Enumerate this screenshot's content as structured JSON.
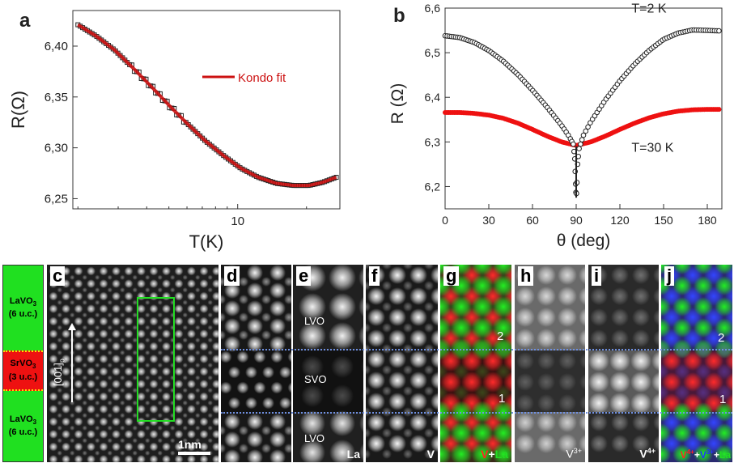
{
  "panel_a": {
    "letter": "a",
    "chart_data": {
      "type": "line",
      "title": "",
      "xlabel": "T(K)",
      "ylabel": "R(Ω)",
      "xscale": "log",
      "xlim": [
        1.9,
        28
      ],
      "ylim": [
        6.24,
        6.435
      ],
      "x_ticks": [
        10
      ],
      "y_ticks": [
        6.25,
        6.3,
        6.35,
        6.4
      ],
      "y_tick_labels": [
        "6,25",
        "6,30",
        "6,35",
        "6,40"
      ],
      "legend": "center-right",
      "series": [
        {
          "name": "",
          "kind": "markers",
          "color": "#222222",
          "x": [
            2.0,
            2.4,
            2.9,
            3.5,
            4.2,
            5.0,
            6.0,
            7.2,
            8.6,
            10.3,
            12.3,
            14.8,
            17.5,
            20.5,
            23.5,
            27.0
          ],
          "y": [
            6.421,
            6.41,
            6.396,
            6.378,
            6.36,
            6.342,
            6.324,
            6.307,
            6.293,
            6.28,
            6.271,
            6.265,
            6.263,
            6.263,
            6.266,
            6.271
          ]
        },
        {
          "name": "Kondo fit",
          "kind": "line",
          "color": "#cc1111",
          "x": [
            2.0,
            2.4,
            2.9,
            3.5,
            4.2,
            5.0,
            6.0,
            7.2,
            8.6,
            10.3,
            12.3,
            14.8,
            17.5,
            20.5,
            23.5,
            27.0
          ],
          "y": [
            6.421,
            6.41,
            6.396,
            6.378,
            6.36,
            6.342,
            6.324,
            6.307,
            6.293,
            6.28,
            6.271,
            6.265,
            6.263,
            6.263,
            6.266,
            6.271
          ]
        }
      ]
    }
  },
  "panel_b": {
    "letter": "b",
    "chart_data": {
      "type": "scatter",
      "title": "",
      "xlabel": "θ (deg)",
      "ylabel": "R (Ω)",
      "xlim": [
        0,
        190
      ],
      "ylim": [
        6.15,
        6.6
      ],
      "x_ticks": [
        0,
        30,
        60,
        90,
        120,
        150,
        180
      ],
      "y_ticks": [
        6.2,
        6.3,
        6.4,
        6.5,
        6.6
      ],
      "y_tick_labels": [
        "6,2",
        "6,3",
        "6,4",
        "6,5",
        "6,6"
      ],
      "annotations": [
        "T=2 K",
        "T=30 K"
      ],
      "series": [
        {
          "name": "T=2 K",
          "kind": "open-circles",
          "color": "#222222",
          "x": [
            0,
            10,
            20,
            30,
            40,
            50,
            60,
            70,
            80,
            85,
            88,
            89,
            90,
            91,
            92,
            95,
            100,
            110,
            120,
            130,
            140,
            150,
            160,
            170,
            180,
            188
          ],
          "y": [
            6.538,
            6.534,
            6.523,
            6.505,
            6.481,
            6.451,
            6.416,
            6.378,
            6.337,
            6.313,
            6.295,
            6.262,
            6.168,
            6.25,
            6.285,
            6.315,
            6.345,
            6.394,
            6.437,
            6.474,
            6.505,
            6.53,
            6.544,
            6.551,
            6.55,
            6.549
          ]
        },
        {
          "name": "T=30 K",
          "kind": "filled-circles",
          "color": "#ee1111",
          "x": [
            0,
            10,
            20,
            30,
            40,
            50,
            60,
            70,
            80,
            90,
            100,
            110,
            120,
            130,
            140,
            150,
            160,
            170,
            180,
            188
          ],
          "y": [
            6.366,
            6.366,
            6.364,
            6.36,
            6.353,
            6.342,
            6.328,
            6.313,
            6.3,
            6.292,
            6.3,
            6.313,
            6.328,
            6.342,
            6.354,
            6.363,
            6.369,
            6.372,
            6.373,
            6.373
          ]
        }
      ]
    }
  },
  "layers": [
    {
      "name": "LaVO",
      "sub": "3",
      "thick": "(6 u.c.)",
      "color": "#20e020"
    },
    {
      "name": "SrVO",
      "sub": "3",
      "thick": "(3 u.c.)",
      "color": "#ee1111"
    },
    {
      "name": "LaVO",
      "sub": "3",
      "thick": "(6 u.c.)",
      "color": "#20e020"
    }
  ],
  "panel_c": {
    "letter": "c",
    "axis_label": "[001]",
    "axis_sub": "p",
    "scale_label": "1nm"
  },
  "panel_d": {
    "letter": "d"
  },
  "panel_e": {
    "letter": "e",
    "top_label": "LVO",
    "mid_label": "SVO",
    "bottom_label": "LVO",
    "corner": "La"
  },
  "panel_f": {
    "letter": "f",
    "corner": "V"
  },
  "panel_g": {
    "letter": "g",
    "marker_top": "2",
    "marker_bottom": "1",
    "corner_a": "V",
    "corner_plus": "+",
    "corner_b": "La"
  },
  "panel_h": {
    "letter": "h",
    "corner_base": "V",
    "corner_sup": "3+"
  },
  "panel_i": {
    "letter": "i",
    "corner_base": "V",
    "corner_sup": "4+"
  },
  "panel_j": {
    "letter": "j",
    "marker_top": "2",
    "marker_bottom": "1",
    "c1": "V",
    "c1_sup": "4+",
    "c2": "V",
    "c2_sup": "3+",
    "c3": "La",
    "plus": "+",
    "colors": {
      "v4": "#ff2222",
      "v3": "#2233ff",
      "la": "#22dd22"
    }
  }
}
